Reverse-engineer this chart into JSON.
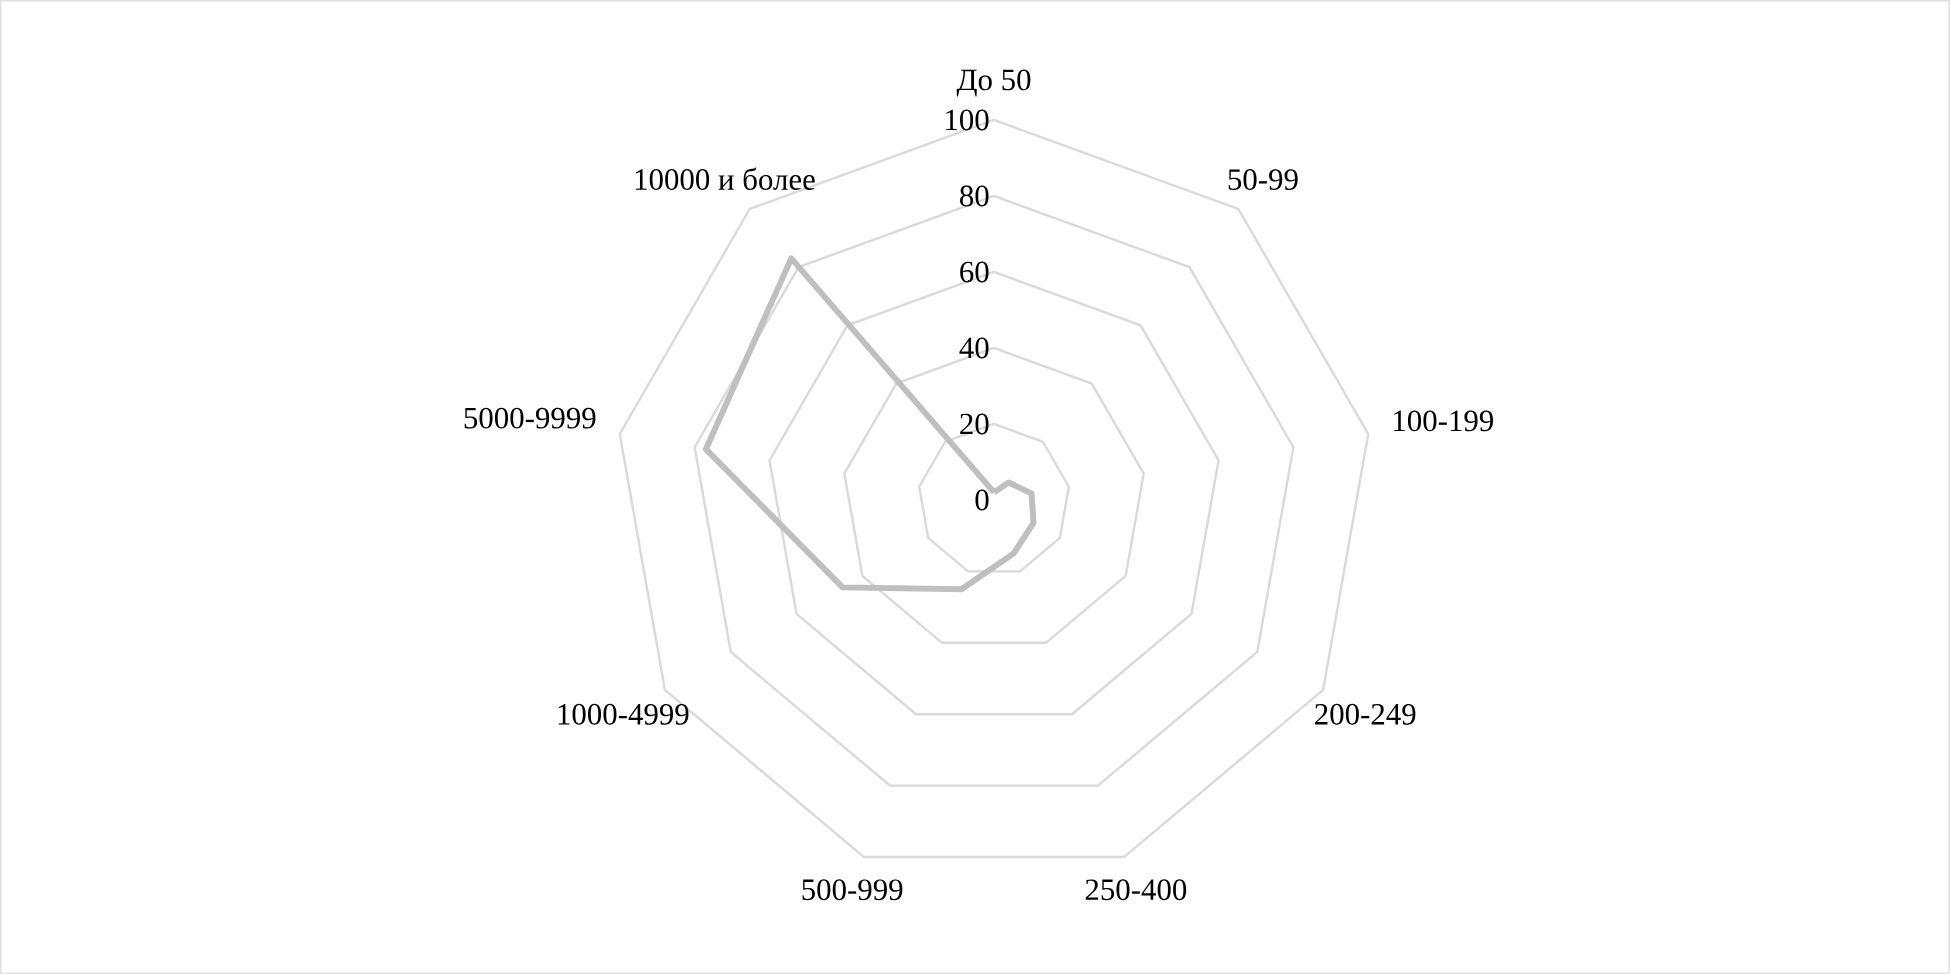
{
  "chart_data": {
    "type": "radar",
    "categories": [
      "До 50",
      "50-99",
      "100-199",
      "200-249",
      "250-400",
      "500-999",
      "1000-4999",
      "5000-9999",
      "10000 и более"
    ],
    "series": [
      {
        "color": "#bfbfbf",
        "values": [
          2,
          6,
          10,
          12,
          15,
          25,
          46,
          77,
          83
        ]
      }
    ],
    "ylim": [
      0,
      100
    ],
    "yticks": [
      0,
      20,
      40,
      60,
      80,
      100
    ],
    "grid": true
  }
}
